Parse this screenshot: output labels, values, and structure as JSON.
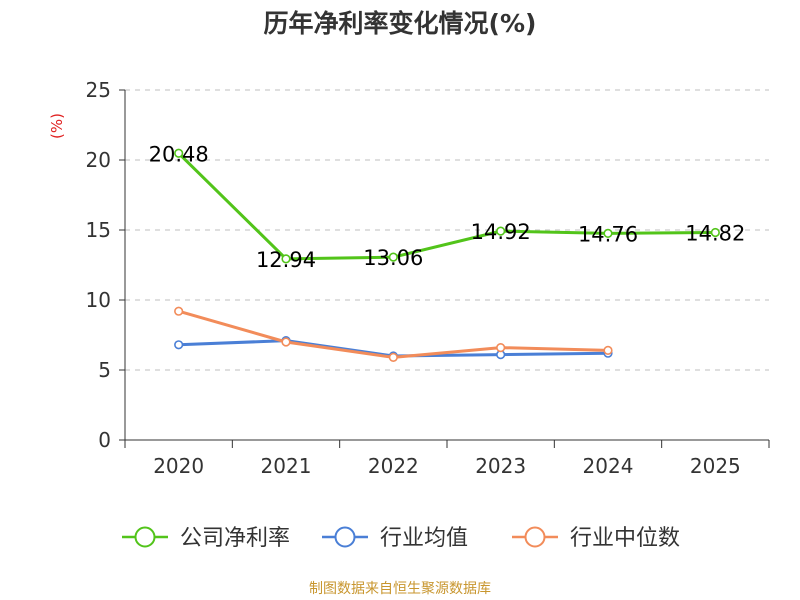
{
  "chart_data": {
    "type": "line",
    "title": "历年净利率变化情况(%)",
    "y_unit": "(%)",
    "categories": [
      "2020",
      "2021",
      "2022",
      "2023",
      "2024",
      "2025"
    ],
    "ylim": [
      0,
      25
    ],
    "yticks": [
      0,
      5,
      10,
      15,
      20,
      25
    ],
    "grid": true,
    "legend_position": "bottom",
    "series": [
      {
        "name": "公司净利率",
        "color": "#52c41a",
        "values": [
          20.48,
          12.94,
          13.06,
          14.92,
          14.76,
          14.82
        ],
        "labels": [
          "20.48",
          "12.94",
          "13.06",
          "14.92",
          "14.76",
          "14.82"
        ]
      },
      {
        "name": "行业均值",
        "color": "#4a7fd6",
        "values": [
          6.8,
          7.1,
          6.0,
          6.1,
          6.2,
          null
        ]
      },
      {
        "name": "行业中位数",
        "color": "#f28c5a",
        "values": [
          9.2,
          7.0,
          5.9,
          6.6,
          6.4,
          null
        ]
      }
    ]
  },
  "source": "制图数据来自恒生聚源数据库"
}
